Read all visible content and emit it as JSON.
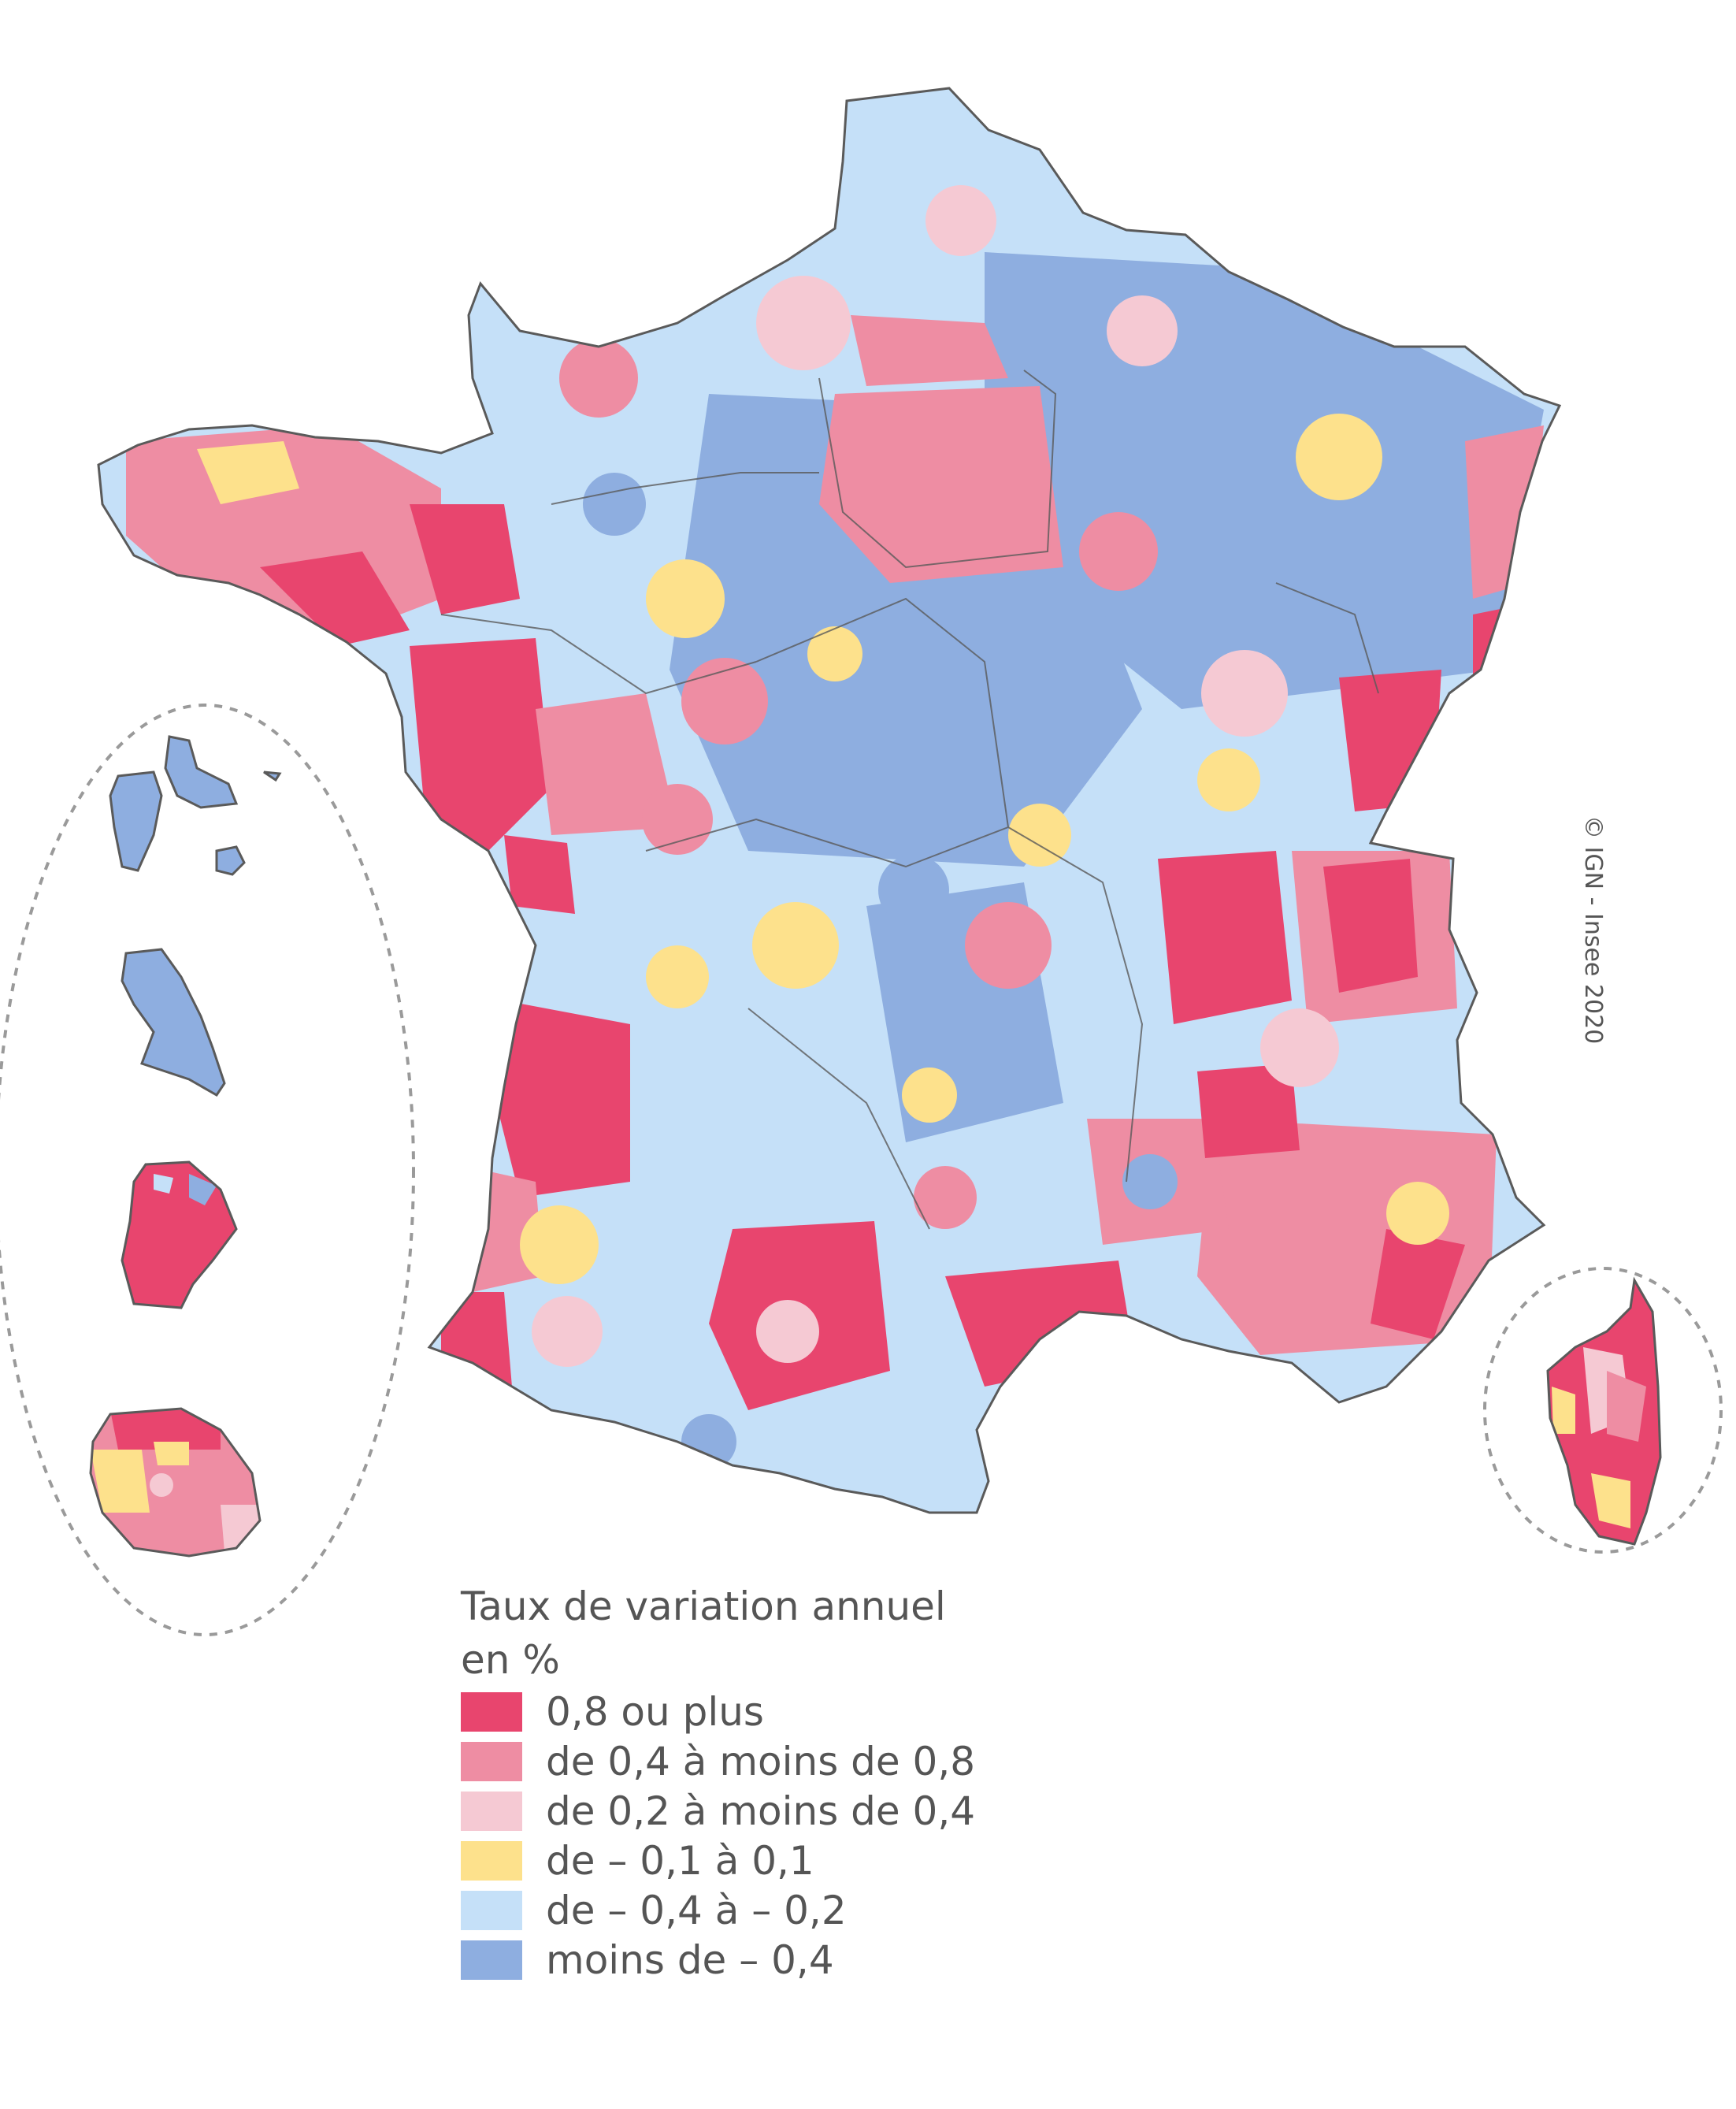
{
  "legend": {
    "title_line1": "Taux de variation annuel",
    "title_line2": "en %",
    "classes": [
      {
        "label": "0,8 ou plus",
        "color": "#e8456e"
      },
      {
        "label": "de 0,4 à moins de 0,8",
        "color": "#ee8da3"
      },
      {
        "label": "de 0,2 à moins de 0,4",
        "color": "#f5c9d3"
      },
      {
        "label": "de – 0,1 à 0,1",
        "color": "#fde18c"
      },
      {
        "label": "de – 0,4 à – 0,2",
        "color": "#c5e0f8"
      },
      {
        "label": "moins de – 0,4",
        "color": "#8eaee0"
      }
    ]
  },
  "copyright": "© IGN - Insee 2020",
  "map": {
    "territories": [
      "metropolitan-france",
      "guadeloupe",
      "martinique",
      "guyane",
      "la-reunion",
      "corse"
    ],
    "border_color": "#5a5a5a",
    "inner_border_color": "#d0d0d0",
    "inset_outline_color": "#9a9a9a"
  }
}
